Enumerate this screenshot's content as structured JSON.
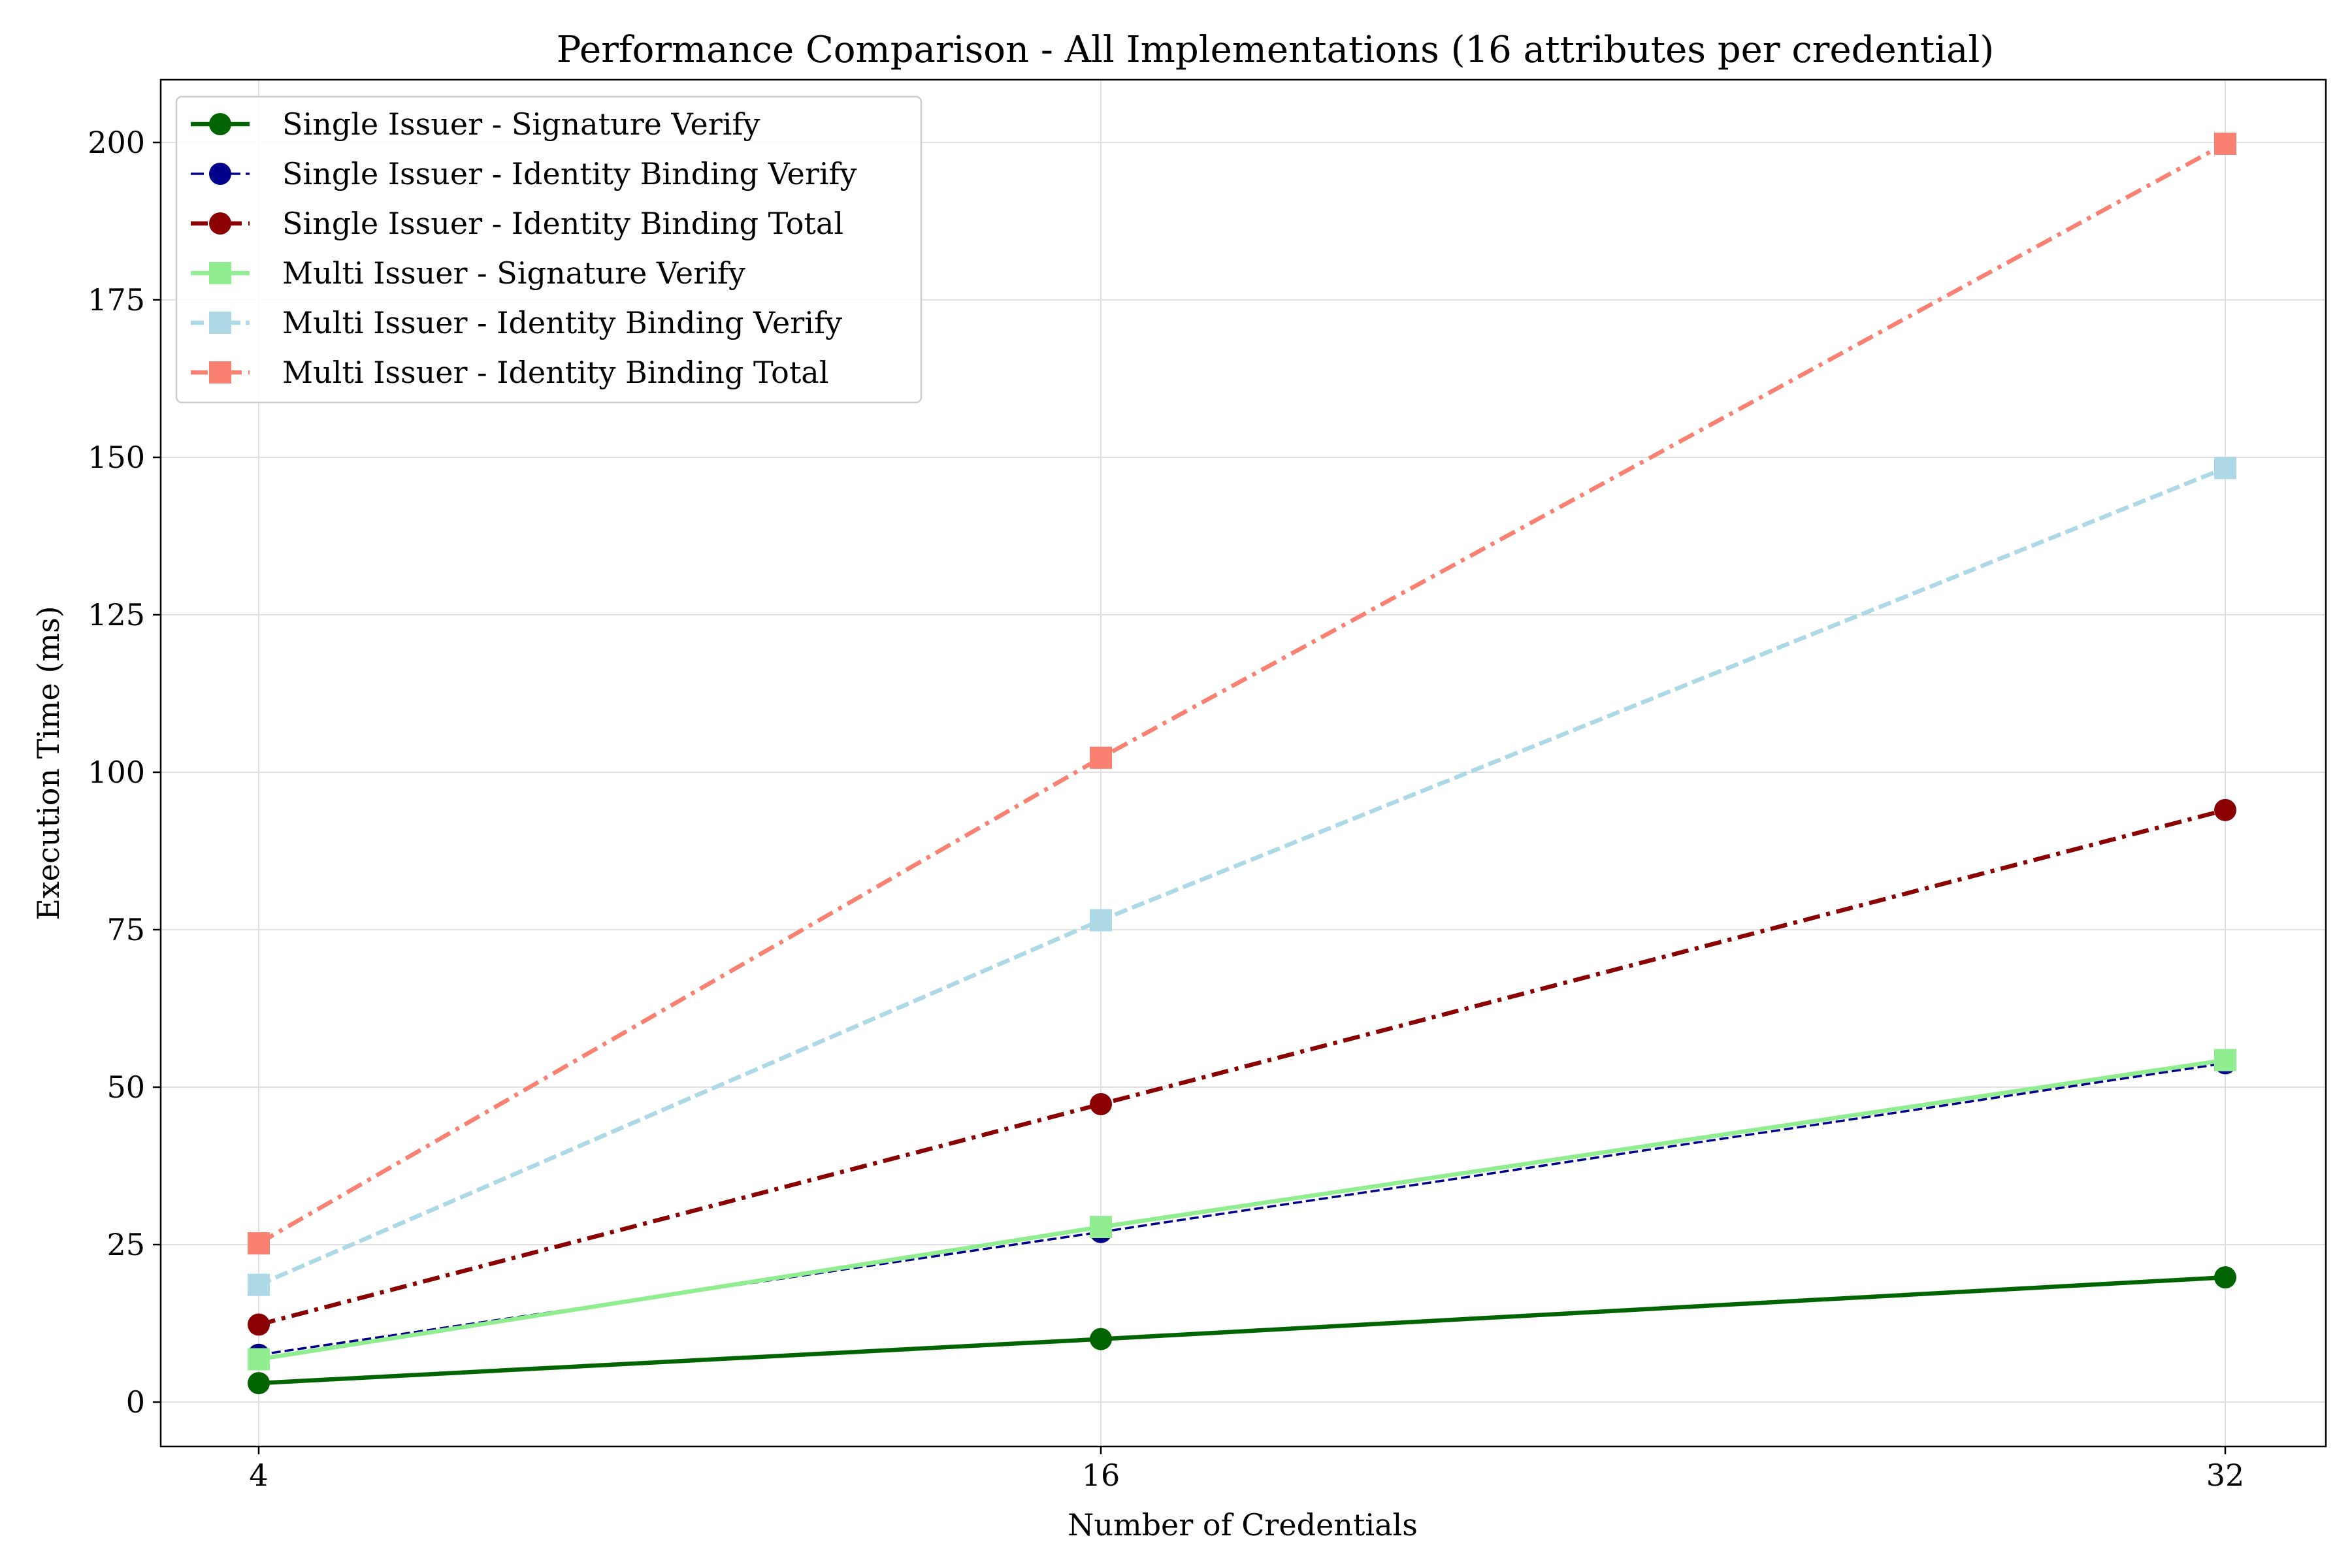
{
  "chart_data": {
    "type": "line",
    "title": "Performance Comparison - All Implementations (16 attributes per credential)",
    "xlabel": "Number of Credentials",
    "ylabel": "Execution Time (ms)",
    "x": [
      4,
      16,
      32
    ],
    "x_tick_labels": [
      "4",
      "16",
      "32"
    ],
    "ylim": [
      -7,
      210
    ],
    "y_ticks": [
      0,
      25,
      50,
      75,
      100,
      125,
      150,
      175,
      200
    ],
    "grid": true,
    "legend_position": "top-left",
    "series": [
      {
        "name": "Single Issuer - Signature Verify",
        "values": [
          3.0,
          10.0,
          19.8
        ],
        "color": "#006400",
        "line_style": "solid",
        "marker": "circle",
        "thin": false
      },
      {
        "name": "Single Issuer - Identity Binding Verify",
        "values": [
          7.5,
          27.0,
          53.8
        ],
        "color": "#00008b",
        "line_style": "dashed",
        "marker": "circle",
        "thin": true
      },
      {
        "name": "Single Issuer - Identity Binding Total",
        "values": [
          12.3,
          47.3,
          94.0
        ],
        "color": "#8b0000",
        "line_style": "dashdot",
        "marker": "circle",
        "thin": false
      },
      {
        "name": "Multi Issuer - Signature Verify",
        "values": [
          6.8,
          27.8,
          54.3
        ],
        "color": "#90ee90",
        "line_style": "solid",
        "marker": "square",
        "thin": false
      },
      {
        "name": "Multi Issuer - Identity Binding Verify",
        "values": [
          18.6,
          76.5,
          148.3
        ],
        "color": "#add8e6",
        "line_style": "dashed",
        "marker": "square",
        "thin": false
      },
      {
        "name": "Multi Issuer - Identity Binding Total",
        "values": [
          25.2,
          102.3,
          199.8
        ],
        "color": "#fa8072",
        "line_style": "dashdot",
        "marker": "square",
        "thin": false
      }
    ]
  }
}
